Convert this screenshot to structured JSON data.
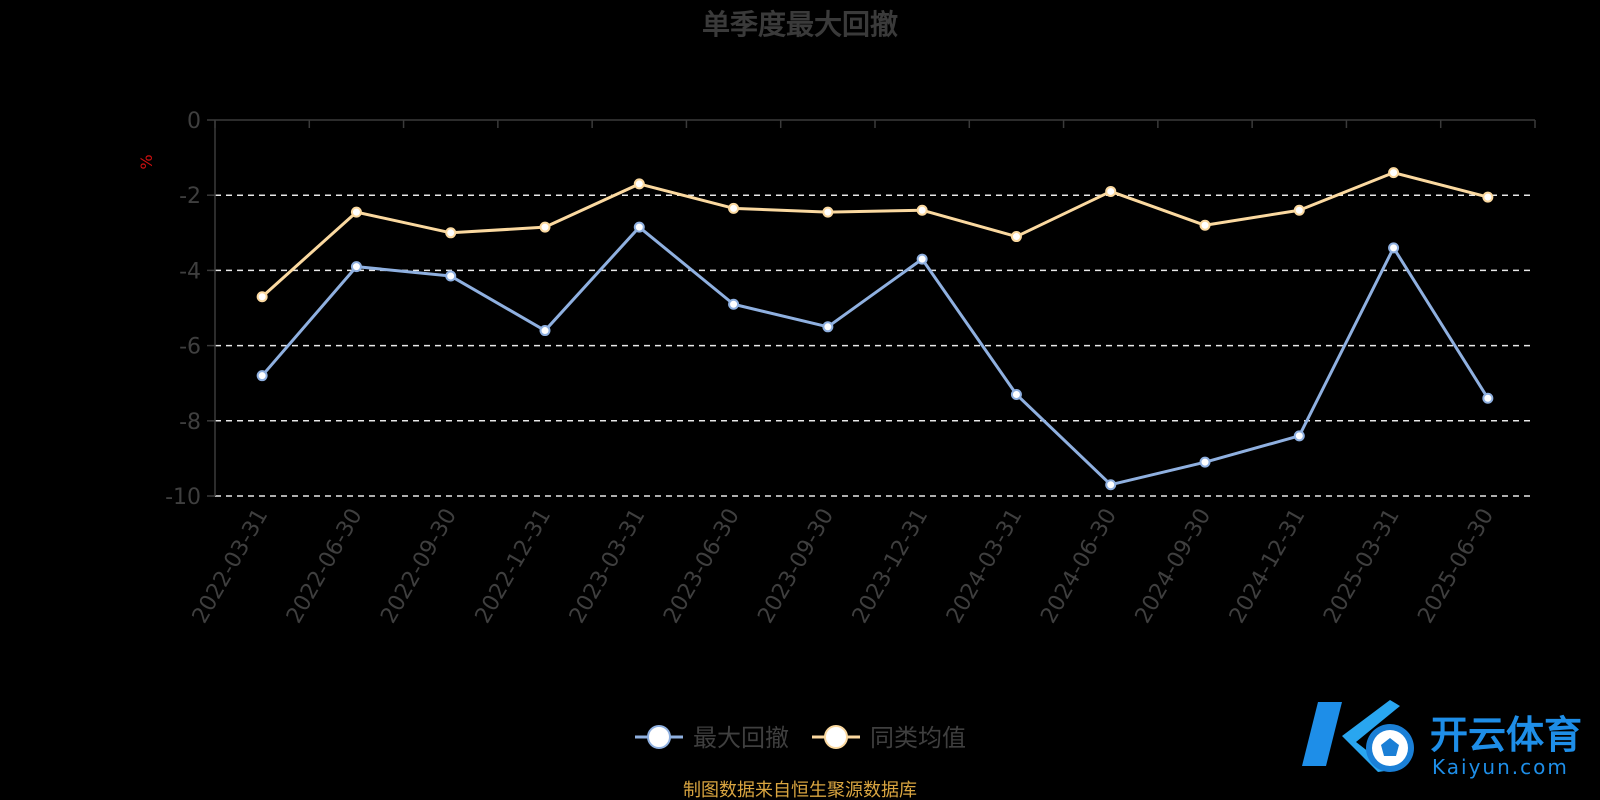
{
  "chart_data": {
    "type": "line",
    "title": "单季度最大回撤",
    "ylabel": "%",
    "ylim": [
      -10,
      0
    ],
    "yticks": [
      0,
      -2,
      -4,
      -6,
      -8,
      -10
    ],
    "grid": true,
    "legend_position": "bottom-center",
    "categories": [
      "2022-03-31",
      "2022-06-30",
      "2022-09-30",
      "2022-12-31",
      "2023-03-31",
      "2023-06-30",
      "2023-09-30",
      "2023-12-31",
      "2024-03-31",
      "2024-06-30",
      "2024-09-30",
      "2024-12-31",
      "2025-03-31",
      "2025-06-30"
    ],
    "series": [
      {
        "name": "最大回撤",
        "color": "#8fb0e0",
        "values": [
          -6.8,
          -3.9,
          -4.15,
          -5.6,
          -2.85,
          -4.9,
          -5.5,
          -3.7,
          -7.3,
          -9.7,
          -9.1,
          -8.4,
          -3.4,
          -7.4
        ]
      },
      {
        "name": "同类均值",
        "color": "#fbd9a0",
        "values": [
          -4.7,
          -2.45,
          -3.0,
          -2.85,
          -1.7,
          -2.35,
          -2.45,
          -2.4,
          -3.1,
          -1.9,
          -2.8,
          -2.4,
          -1.4,
          -2.05
        ]
      }
    ]
  },
  "footer": {
    "source": "制图数据来自恒生聚源数据库"
  },
  "watermark": {
    "cn": "开云体育",
    "en": "Kaiyun.com"
  }
}
